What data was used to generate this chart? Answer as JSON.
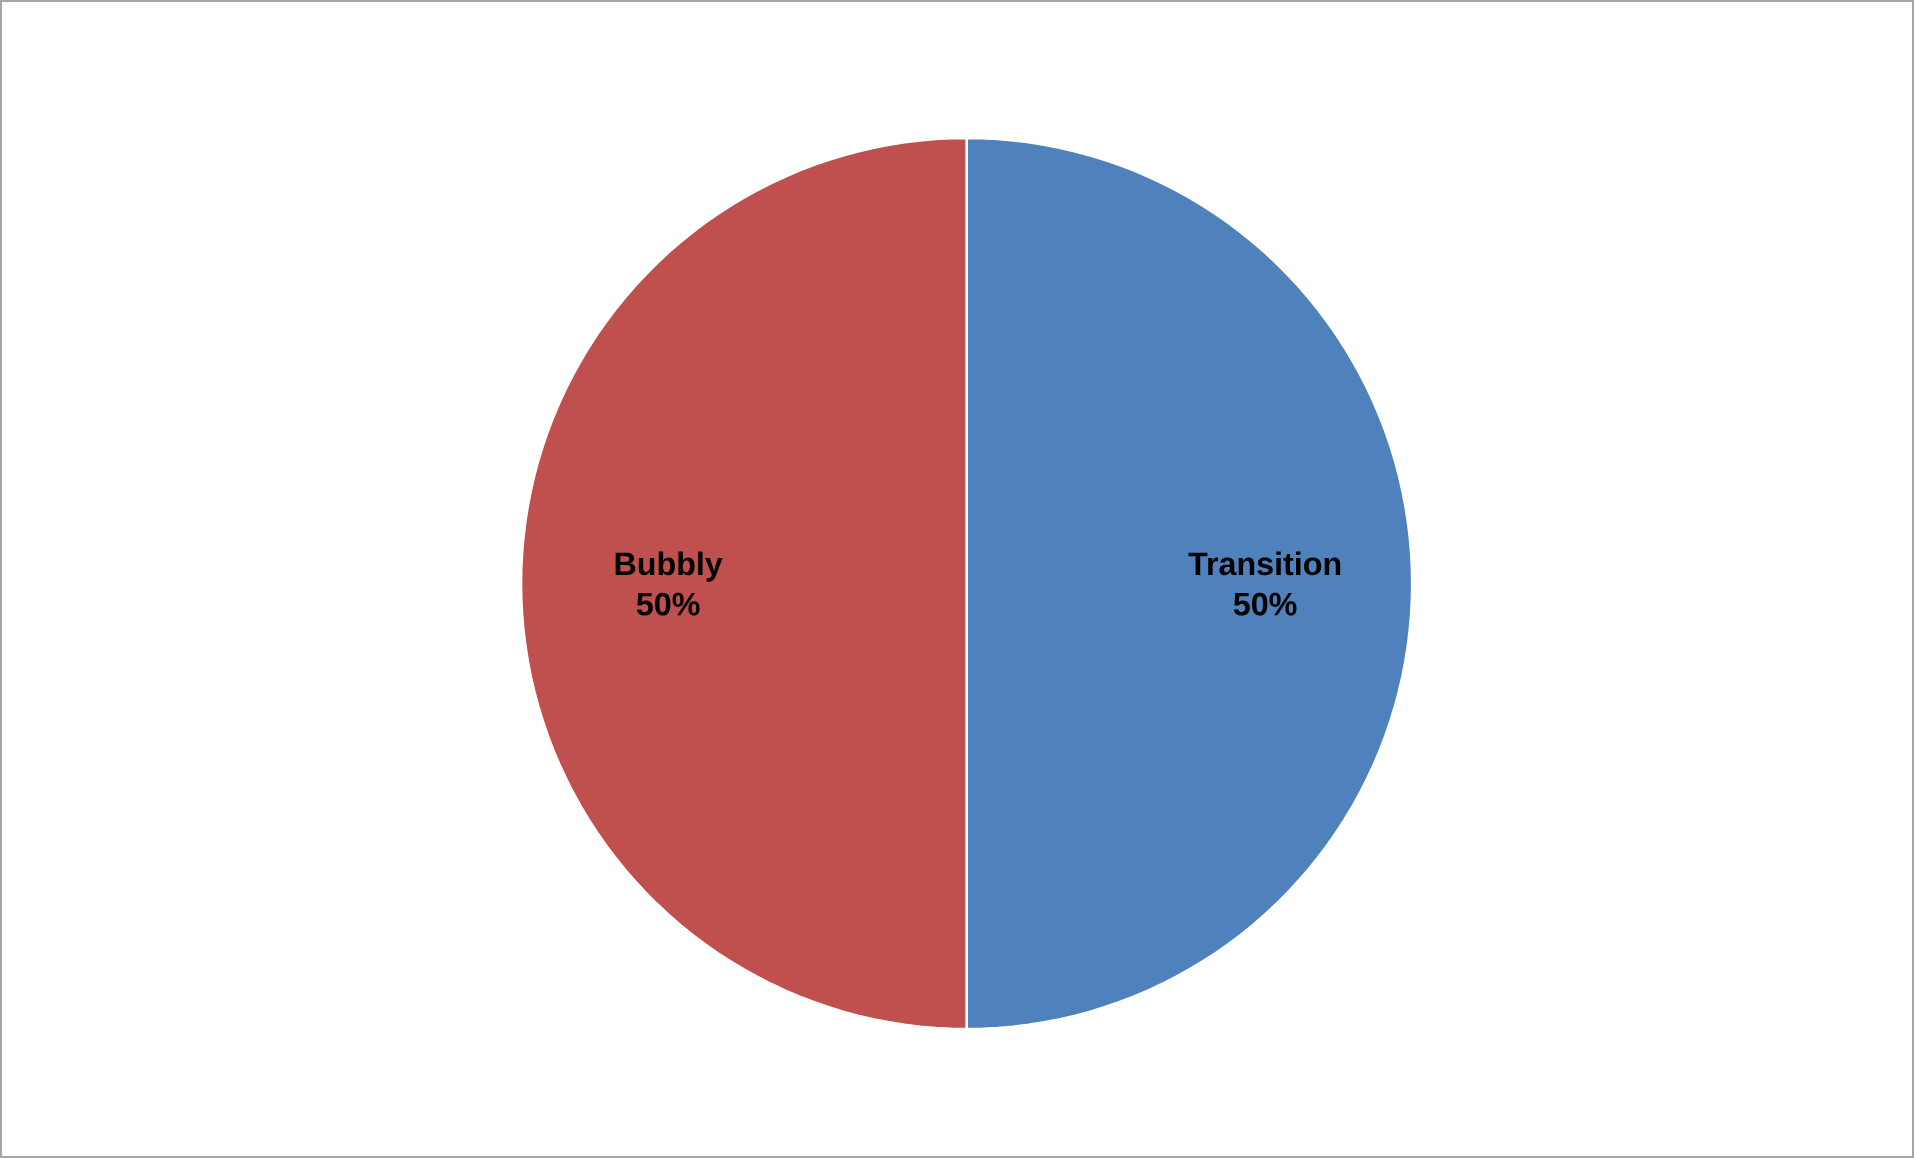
{
  "chart_data": {
    "type": "pie",
    "categories": [
      "Transition",
      "Bubbly"
    ],
    "values": [
      50,
      50
    ],
    "colors": [
      "#4f81bd",
      "#c0504d"
    ],
    "value_labels": [
      "50%",
      "50%"
    ]
  }
}
